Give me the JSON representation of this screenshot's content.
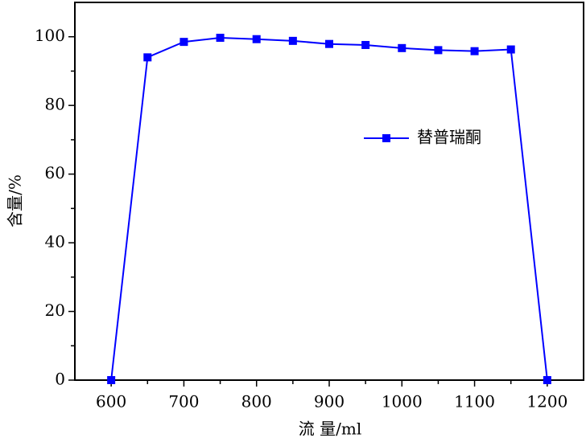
{
  "chart_data": {
    "type": "line",
    "x_label": "流 量/ml",
    "y_label": "含量/%",
    "x": [
      600,
      650,
      700,
      750,
      800,
      850,
      900,
      950,
      1000,
      1050,
      1100,
      1150,
      1200
    ],
    "series": [
      {
        "name": "替普瑞酮",
        "color": "#0000ff",
        "values": [
          0,
          94,
          98.5,
          99.7,
          99.3,
          98.8,
          97.9,
          97.6,
          96.7,
          96.1,
          95.8,
          96.3,
          0
        ]
      }
    ],
    "xlim": [
      550,
      1250
    ],
    "ylim": [
      0,
      110
    ],
    "xticks": [
      600,
      700,
      800,
      900,
      1000,
      1100,
      1200
    ],
    "yticks": [
      0,
      20,
      40,
      60,
      80,
      100
    ],
    "xminorticks": [
      650,
      750,
      850,
      950,
      1050,
      1150
    ],
    "yminorticks": [
      10,
      30,
      50,
      70,
      90
    ]
  }
}
